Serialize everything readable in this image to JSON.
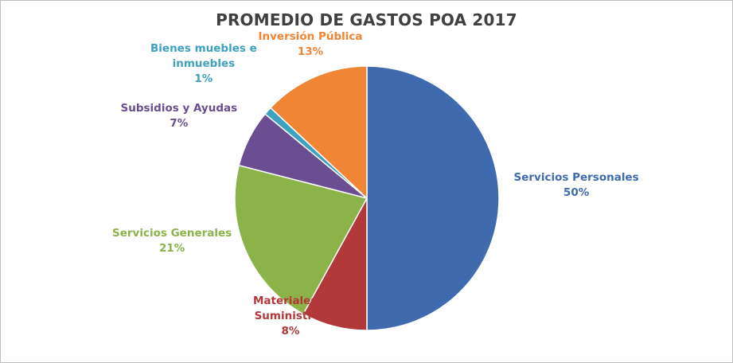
{
  "chart_data": {
    "type": "pie",
    "title": "PROMEDIO DE GASTOS POA 2017",
    "slices": [
      {
        "name": "Servicios Personales",
        "name_lines": [
          "Servicios Personales"
        ],
        "value": 50,
        "label": "50%",
        "color": "#3f6aae"
      },
      {
        "name": "Materiales y Suministros",
        "name_lines": [
          "Materiales y",
          "Suministros"
        ],
        "value": 8,
        "label": "8%",
        "color": "#b1393a"
      },
      {
        "name": "Servicios Generales",
        "name_lines": [
          "Servicios Generales"
        ],
        "value": 21,
        "label": "21%",
        "color": "#8cb24a"
      },
      {
        "name": "Subsidios y Ayudas",
        "name_lines": [
          "Subsidios y Ayudas"
        ],
        "value": 7,
        "label": "7%",
        "color": "#6b4e92"
      },
      {
        "name": "Bienes muebles e inmuebles",
        "name_lines": [
          "Bienes muebles e",
          "inmuebles"
        ],
        "value": 1,
        "label": "1%",
        "color": "#3da1c0"
      },
      {
        "name": "Inversión Pública",
        "name_lines": [
          "Inversión Pública"
        ],
        "value": 13,
        "label": "13%",
        "color": "#ef8535"
      }
    ]
  }
}
